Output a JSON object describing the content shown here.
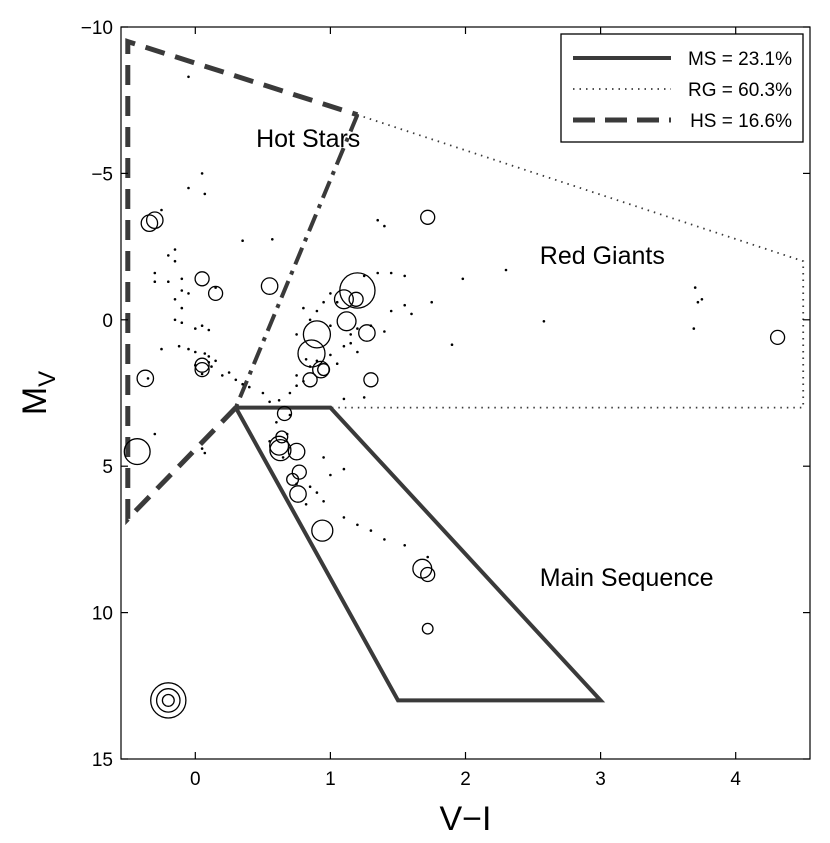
{
  "chart_data": {
    "type": "scatter",
    "xlabel": "V−I",
    "ylabel": "M",
    "ylabel_subscript": "V",
    "xlim": [
      -0.55,
      4.55
    ],
    "ylim": [
      -10,
      15
    ],
    "y_inverted": true,
    "xticks": [
      0,
      1,
      2,
      3,
      4
    ],
    "xtick_labels": [
      "0",
      "1",
      "2",
      "3",
      "4"
    ],
    "yticks": [
      -10,
      -5,
      0,
      5,
      10,
      15
    ],
    "ytick_labels": [
      "−10",
      "−5",
      "0",
      "5",
      "10",
      "15"
    ],
    "grid": false,
    "legend_position": "top-right",
    "legend": [
      {
        "label": "MS = 23.1%",
        "style": "solid"
      },
      {
        "label": "RG = 60.3%",
        "style": "dotted"
      },
      {
        "label": "HS = 16.6%",
        "style": "dashed"
      }
    ],
    "regions": [
      {
        "key": "hot_stars_dashed",
        "label": "HS",
        "style": "dashed",
        "points": [
          [
            0.3,
            3.0
          ],
          [
            -0.5,
            6.8
          ],
          [
            -0.5,
            -9.5
          ],
          [
            1.2,
            -7.0
          ]
        ]
      },
      {
        "key": "hot_stars_dashdot",
        "label": "HS boundary",
        "style": "dashdot",
        "points": [
          [
            1.2,
            -7.0
          ],
          [
            0.3,
            3.0
          ]
        ]
      },
      {
        "key": "red_giants",
        "label": "RG",
        "style": "dotted",
        "points": [
          [
            1.2,
            -7.0
          ],
          [
            4.5,
            -2.0
          ],
          [
            4.5,
            3.0
          ],
          [
            1.0,
            3.0
          ]
        ]
      },
      {
        "key": "main_sequence",
        "label": "MS",
        "style": "solid",
        "points": [
          [
            0.3,
            3.0
          ],
          [
            1.0,
            3.0
          ],
          [
            3.0,
            13.0
          ],
          [
            1.5,
            13.0
          ],
          [
            0.3,
            3.0
          ]
        ]
      }
    ],
    "annotations": [
      {
        "text": "Hot Stars",
        "x": 0.45,
        "y": -5.9
      },
      {
        "text": "Red Giants",
        "x": 2.55,
        "y": -1.9
      },
      {
        "text": "Main Sequence",
        "x": 2.55,
        "y": 9.1
      }
    ],
    "circles": [
      [
        -0.34,
        -3.3,
        1.4
      ],
      [
        -0.3,
        -3.4,
        1.4
      ],
      [
        0.05,
        -1.4,
        1.2
      ],
      [
        0.15,
        -0.9,
        1.2
      ],
      [
        0.55,
        -1.15,
        1.4
      ],
      [
        1.72,
        -3.5,
        1.2
      ],
      [
        -0.37,
        2.0,
        1.4
      ],
      [
        -0.43,
        4.5,
        2.2
      ],
      [
        0.05,
        1.55,
        1.2
      ],
      [
        0.05,
        1.7,
        1.2
      ],
      [
        1.2,
        -1.0,
        3.0
      ],
      [
        1.1,
        -0.7,
        1.6
      ],
      [
        1.19,
        -0.7,
        1.2
      ],
      [
        0.9,
        0.5,
        2.3
      ],
      [
        0.86,
        1.15,
        2.3
      ],
      [
        1.12,
        0.05,
        1.6
      ],
      [
        1.27,
        0.45,
        1.4
      ],
      [
        0.93,
        1.7,
        1.4
      ],
      [
        0.95,
        1.7,
        1.0
      ],
      [
        0.85,
        2.05,
        1.2
      ],
      [
        1.3,
        2.05,
        1.2
      ],
      [
        4.31,
        0.6,
        1.2
      ],
      [
        0.66,
        3.2,
        1.2
      ],
      [
        0.64,
        4.0,
        1.0
      ],
      [
        0.62,
        4.3,
        1.6
      ],
      [
        0.63,
        4.45,
        1.8
      ],
      [
        0.75,
        4.5,
        1.4
      ],
      [
        0.77,
        5.2,
        1.2
      ],
      [
        0.72,
        5.45,
        1.0
      ],
      [
        0.76,
        5.95,
        1.4
      ],
      [
        0.94,
        7.2,
        1.8
      ],
      [
        1.68,
        8.5,
        1.6
      ],
      [
        1.72,
        8.7,
        1.2
      ],
      [
        1.72,
        10.55,
        0.9
      ],
      [
        -0.2,
        13.0,
        3.0
      ],
      [
        -0.2,
        13.0,
        2.0
      ],
      [
        -0.2,
        13.0,
        1.0
      ]
    ],
    "dots": [
      [
        -0.05,
        -8.3
      ],
      [
        0.05,
        -5.0
      ],
      [
        -0.05,
        -4.5
      ],
      [
        0.07,
        -4.3
      ],
      [
        -0.25,
        -3.75
      ],
      [
        0.35,
        -2.7
      ],
      [
        0.57,
        -2.75
      ],
      [
        1.35,
        -3.4
      ],
      [
        1.4,
        -3.2
      ],
      [
        -0.2,
        -2.2
      ],
      [
        -0.15,
        -2.0
      ],
      [
        -0.1,
        -1.4
      ],
      [
        -0.1,
        -1.0
      ],
      [
        -0.2,
        -1.3
      ],
      [
        -0.05,
        -0.9
      ],
      [
        -0.15,
        -0.7
      ],
      [
        -0.1,
        -0.4
      ],
      [
        -0.15,
        0.0
      ],
      [
        -0.1,
        0.1
      ],
      [
        0.0,
        0.3
      ],
      [
        0.05,
        0.2
      ],
      [
        0.1,
        0.35
      ],
      [
        -0.25,
        1.0
      ],
      [
        -0.05,
        1.0
      ],
      [
        0.0,
        1.1
      ],
      [
        0.07,
        1.15
      ],
      [
        0.1,
        1.25
      ],
      [
        0.15,
        1.4
      ],
      [
        0.12,
        1.6
      ],
      [
        0.05,
        1.85
      ],
      [
        0.2,
        1.9
      ],
      [
        0.3,
        2.05
      ],
      [
        0.35,
        2.2
      ],
      [
        0.4,
        2.3
      ],
      [
        0.5,
        2.5
      ],
      [
        0.55,
        2.8
      ],
      [
        0.62,
        2.75
      ],
      [
        0.7,
        2.5
      ],
      [
        0.75,
        2.25
      ],
      [
        0.8,
        2.1
      ],
      [
        0.85,
        1.6
      ],
      [
        0.9,
        1.4
      ],
      [
        1.0,
        1.2
      ],
      [
        1.05,
        1.5
      ],
      [
        1.1,
        0.9
      ],
      [
        1.15,
        0.8
      ],
      [
        1.2,
        1.1
      ],
      [
        1.0,
        0.2
      ],
      [
        0.9,
        -0.3
      ],
      [
        0.95,
        -0.6
      ],
      [
        0.8,
        -0.4
      ],
      [
        0.85,
        0.0
      ],
      [
        0.75,
        0.5
      ],
      [
        1.0,
        -0.9
      ],
      [
        1.05,
        -0.6
      ],
      [
        1.25,
        -1.5
      ],
      [
        1.35,
        -1.6
      ],
      [
        1.45,
        -1.6
      ],
      [
        1.55,
        -1.5
      ],
      [
        1.55,
        -0.5
      ],
      [
        1.6,
        -0.2
      ],
      [
        1.75,
        -0.6
      ],
      [
        1.45,
        -0.3
      ],
      [
        1.4,
        0.4
      ],
      [
        1.3,
        0.2
      ],
      [
        1.2,
        0.3
      ],
      [
        1.15,
        0.5
      ],
      [
        1.9,
        0.85
      ],
      [
        1.98,
        -1.4
      ],
      [
        2.3,
        -1.7
      ],
      [
        2.58,
        0.05
      ],
      [
        3.7,
        -1.1
      ],
      [
        3.69,
        0.3
      ],
      [
        3.72,
        -0.6
      ],
      [
        3.75,
        -0.7
      ],
      [
        1.25,
        2.65
      ],
      [
        1.1,
        2.7
      ],
      [
        0.7,
        3.25
      ],
      [
        0.6,
        3.5
      ],
      [
        0.68,
        3.9
      ],
      [
        0.55,
        4.15
      ],
      [
        0.65,
        4.7
      ],
      [
        0.75,
        5.6
      ],
      [
        0.85,
        5.7
      ],
      [
        0.9,
        5.9
      ],
      [
        0.82,
        6.3
      ],
      [
        0.95,
        6.2
      ],
      [
        1.0,
        5.3
      ],
      [
        1.1,
        6.75
      ],
      [
        1.2,
        7.0
      ],
      [
        1.3,
        7.2
      ],
      [
        1.4,
        7.5
      ],
      [
        1.55,
        7.7
      ],
      [
        1.72,
        8.1
      ],
      [
        0.95,
        4.7
      ],
      [
        1.1,
        5.1
      ],
      [
        -0.35,
        2.0
      ],
      [
        -0.3,
        3.9
      ],
      [
        0.07,
        4.55
      ],
      [
        0.05,
        4.4
      ],
      [
        0.0,
        1.55
      ],
      [
        0.1,
        1.45
      ],
      [
        -0.3,
        -1.6
      ],
      [
        -0.3,
        -1.3
      ],
      [
        -0.15,
        -2.4
      ],
      [
        0.15,
        -1.1
      ],
      [
        -0.12,
        0.9
      ],
      [
        0.25,
        1.8
      ],
      [
        0.75,
        1.9
      ],
      [
        0.82,
        1.35
      ]
    ]
  }
}
